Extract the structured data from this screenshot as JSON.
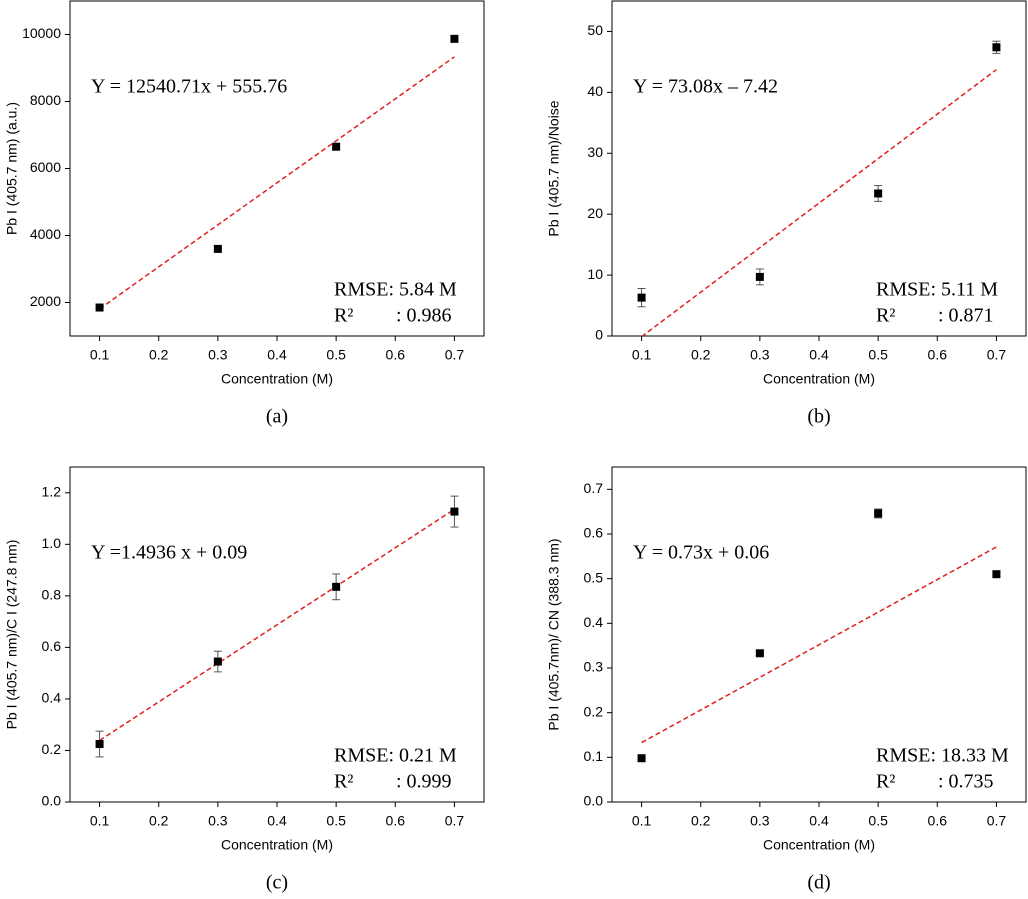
{
  "chart_data": [
    {
      "type": "scatter",
      "label": "(a)",
      "xlabel": "Concentration (M)",
      "ylabel": "Pb I (405.7 nm) (a.u.)",
      "equation": "Y = 12540.71x + 555.76",
      "rmse": "RMSE: 5.84 M",
      "r2_label": "R²",
      "r2_value": ": 0.986",
      "xlim": [
        0.05,
        0.75
      ],
      "ylim": [
        1000,
        11000
      ],
      "xticks": [
        0.1,
        0.2,
        0.3,
        0.4,
        0.5,
        0.6,
        0.7
      ],
      "yticks": [
        2000,
        4000,
        6000,
        8000,
        10000
      ],
      "series": [
        {
          "color": "#000000",
          "x": [
            0.1,
            0.3,
            0.5,
            0.7
          ],
          "values": [
            1850,
            3600,
            6650,
            9870
          ]
        }
      ],
      "fit": {
        "color": "#e02020",
        "x": [
          0.1,
          0.7
        ],
        "values": [
          1810,
          9334
        ]
      }
    },
    {
      "type": "scatter",
      "label": "(b)",
      "xlabel": "Concentration (M)",
      "ylabel": "Pb I (405.7 nm)/Noise",
      "equation": "Y = 73.08x – 7.42",
      "rmse": "RMSE: 5.11 M",
      "r2_label": "R²",
      "r2_value": ": 0.871",
      "xlim": [
        0.05,
        0.75
      ],
      "ylim": [
        0,
        55
      ],
      "xticks": [
        0.1,
        0.2,
        0.3,
        0.4,
        0.5,
        0.6,
        0.7
      ],
      "yticks": [
        0,
        10,
        20,
        30,
        40,
        50
      ],
      "series": [
        {
          "color": "#000000",
          "x": [
            0.1,
            0.3,
            0.5,
            0.7
          ],
          "values": [
            6.3,
            9.7,
            23.4,
            47.4
          ],
          "errors": [
            1.5,
            1.3,
            1.3,
            1.0
          ]
        }
      ],
      "fit": {
        "color": "#e02020",
        "x": [
          0.1,
          0.7
        ],
        "values": [
          -0.11,
          43.74
        ]
      }
    },
    {
      "type": "scatter",
      "label": "(c)",
      "xlabel": "Concentration (M)",
      "ylabel": "Pb I (405.7 nm)/C I (247.8 nm)",
      "equation": "Y =1.4936 x + 0.09",
      "rmse": "RMSE: 0.21 M",
      "r2_label": "R²",
      "r2_value": ": 0.999",
      "xlim": [
        0.05,
        0.75
      ],
      "ylim": [
        0,
        1.3
      ],
      "xticks": [
        0.1,
        0.2,
        0.3,
        0.4,
        0.5,
        0.6,
        0.7
      ],
      "yticks": [
        {
          "value": 0,
          "label": "0.0"
        },
        0.2,
        0.4,
        0.6,
        0.8,
        {
          "value": 1,
          "label": "1.0"
        },
        1.2
      ],
      "series": [
        {
          "color": "#000000",
          "x": [
            0.1,
            0.3,
            0.5,
            0.7
          ],
          "values": [
            0.225,
            0.545,
            0.835,
            1.127
          ],
          "errors": [
            0.05,
            0.04,
            0.05,
            0.06
          ]
        }
      ],
      "fit": {
        "color": "#e02020",
        "x": [
          0.1,
          0.7
        ],
        "values": [
          0.239,
          1.136
        ]
      }
    },
    {
      "type": "scatter",
      "label": "(d)",
      "xlabel": "Concentration (M)",
      "ylabel": "Pb I (405.7nm)/ CN (388.3 nm)",
      "equation": "Y = 0.73x + 0.06",
      "rmse": "RMSE: 18.33 M",
      "r2_label": "R²",
      "r2_value": ": 0.735",
      "xlim": [
        0.05,
        0.75
      ],
      "ylim": [
        0,
        0.75
      ],
      "xticks": [
        0.1,
        0.2,
        0.3,
        0.4,
        0.5,
        0.6,
        0.7
      ],
      "yticks": [
        {
          "value": 0,
          "label": "0.0"
        },
        0.1,
        0.2,
        0.3,
        0.4,
        0.5,
        0.6,
        0.7
      ],
      "series": [
        {
          "color": "#000000",
          "x": [
            0.1,
            0.3,
            0.5,
            0.7
          ],
          "values": [
            0.098,
            0.333,
            0.646,
            0.51
          ],
          "errors": [
            0.004,
            0.005,
            0.01,
            0.005
          ]
        }
      ],
      "fit": {
        "color": "#e02020",
        "x": [
          0.1,
          0.7
        ],
        "values": [
          0.133,
          0.571
        ]
      }
    }
  ]
}
